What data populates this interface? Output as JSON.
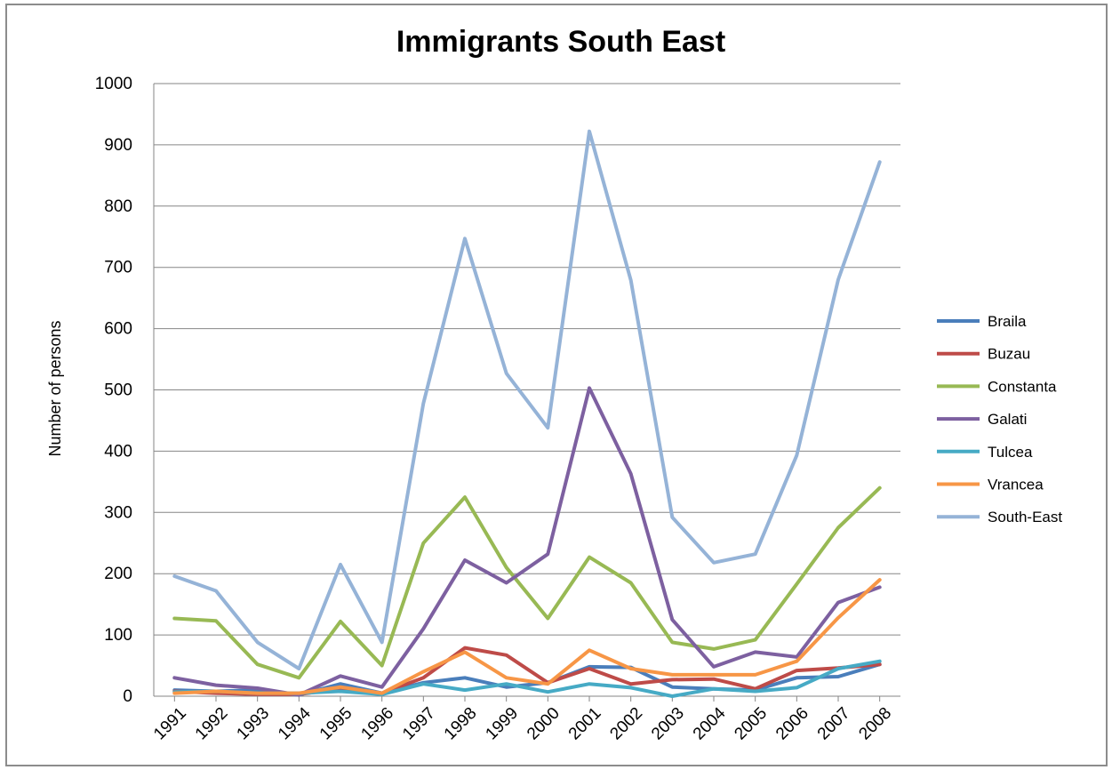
{
  "chart_data": {
    "type": "line",
    "title": "Immigrants South East",
    "xlabel": "",
    "ylabel": "Number of persons",
    "ylim": [
      0,
      1000
    ],
    "yticks": [
      0,
      100,
      200,
      300,
      400,
      500,
      600,
      700,
      800,
      900,
      1000
    ],
    "categories": [
      "1991",
      "1992",
      "1993",
      "1994",
      "1995",
      "1996",
      "1997",
      "1998",
      "1999",
      "2000",
      "2001",
      "2002",
      "2003",
      "2004",
      "2005",
      "2006",
      "2007",
      "2008"
    ],
    "grid": true,
    "legend_position": "right",
    "series": [
      {
        "name": "Braila",
        "color": "#4A7EBB",
        "values": [
          10,
          8,
          10,
          2,
          20,
          5,
          22,
          30,
          15,
          22,
          48,
          47,
          15,
          12,
          10,
          30,
          32,
          52
        ]
      },
      {
        "name": "Buzau",
        "color": "#BE4B48",
        "values": [
          8,
          5,
          3,
          3,
          12,
          5,
          30,
          79,
          67,
          22,
          45,
          20,
          27,
          28,
          12,
          42,
          46,
          52
        ]
      },
      {
        "name": "Constanta",
        "color": "#98B954",
        "values": [
          127,
          123,
          52,
          30,
          122,
          50,
          250,
          325,
          210,
          127,
          227,
          185,
          88,
          77,
          92,
          183,
          275,
          340
        ]
      },
      {
        "name": "Galati",
        "color": "#7D60A0",
        "values": [
          30,
          18,
          13,
          2,
          33,
          15,
          110,
          222,
          185,
          232,
          503,
          363,
          125,
          48,
          72,
          64,
          153,
          178
        ]
      },
      {
        "name": "Tulcea",
        "color": "#46AAC5",
        "values": [
          7,
          8,
          5,
          5,
          8,
          3,
          20,
          10,
          20,
          7,
          20,
          14,
          0,
          12,
          8,
          14,
          45,
          57
        ]
      },
      {
        "name": "Vrancea",
        "color": "#F79646",
        "values": [
          5,
          8,
          5,
          5,
          15,
          5,
          40,
          72,
          30,
          20,
          75,
          45,
          35,
          35,
          35,
          57,
          128,
          190
        ]
      },
      {
        "name": "South-East",
        "color": "#95B3D7",
        "values": [
          196,
          172,
          88,
          45,
          215,
          88,
          478,
          747,
          527,
          438,
          922,
          679,
          292,
          218,
          232,
          393,
          680,
          872
        ]
      }
    ]
  }
}
